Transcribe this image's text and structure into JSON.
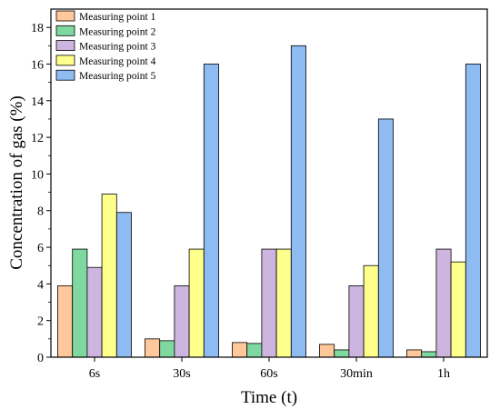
{
  "chart_data": {
    "type": "bar",
    "title": "",
    "xlabel": "Time (t)",
    "ylabel": "Concentration of gas (%)",
    "categories": [
      "6s",
      "30s",
      "60s",
      "30min",
      "1h"
    ],
    "ylim": [
      0,
      19
    ],
    "yticks": [
      0,
      2,
      4,
      6,
      8,
      10,
      12,
      14,
      16,
      18
    ],
    "grid": false,
    "legend_position": "top-left",
    "series": [
      {
        "name": "Measuring point 1",
        "color": "#FFC89B",
        "values": [
          3.9,
          1.0,
          0.8,
          0.7,
          0.4
        ]
      },
      {
        "name": "Measuring point 2",
        "color": "#7ED8A0",
        "values": [
          5.9,
          0.9,
          0.75,
          0.4,
          0.3
        ]
      },
      {
        "name": "Measuring point 3",
        "color": "#CDB5E0",
        "values": [
          4.9,
          3.9,
          5.9,
          3.9,
          5.9
        ]
      },
      {
        "name": "Measuring point 4",
        "color": "#FFFF8C",
        "values": [
          8.9,
          5.9,
          5.9,
          5.0,
          5.2
        ]
      },
      {
        "name": "Measuring point 5",
        "color": "#8DBBF2",
        "values": [
          7.9,
          16.0,
          17.0,
          13.0,
          16.0
        ]
      }
    ]
  }
}
